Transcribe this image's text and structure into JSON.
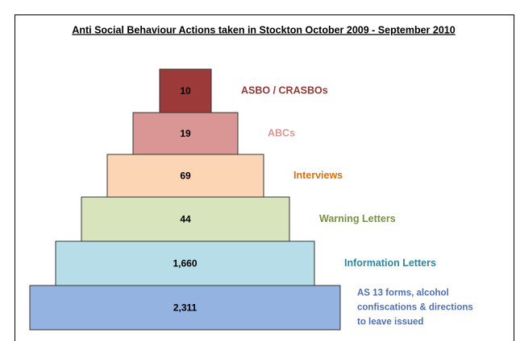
{
  "title": "Anti Social Behaviour Actions taken in Stockton October 2009 - September 2010",
  "tiers": [
    {
      "value": "10",
      "label_lines": [
        "ASBO / CRASBOs"
      ],
      "fill": "#9b3a38",
      "label_color": "#953735"
    },
    {
      "value": "19",
      "label_lines": [
        "ABCs"
      ],
      "fill": "#d99694",
      "label_color": "#d99694"
    },
    {
      "value": "69",
      "label_lines": [
        "Interviews"
      ],
      "fill": "#fcd5b4",
      "label_color": "#e46c0a"
    },
    {
      "value": "44",
      "label_lines": [
        "Warning Letters"
      ],
      "fill": "#d7e4bc",
      "label_color": "#77933c"
    },
    {
      "value": "1,660",
      "label_lines": [
        "Information Letters"
      ],
      "fill": "#b7dde8",
      "label_color": "#31859c"
    },
    {
      "value": "2,311",
      "label_lines": [
        "AS 13 forms, alcohol",
        "confiscations & directions",
        "to leave issued"
      ],
      "fill": "#95b3e0",
      "label_color": "#4f6fb5"
    }
  ]
}
